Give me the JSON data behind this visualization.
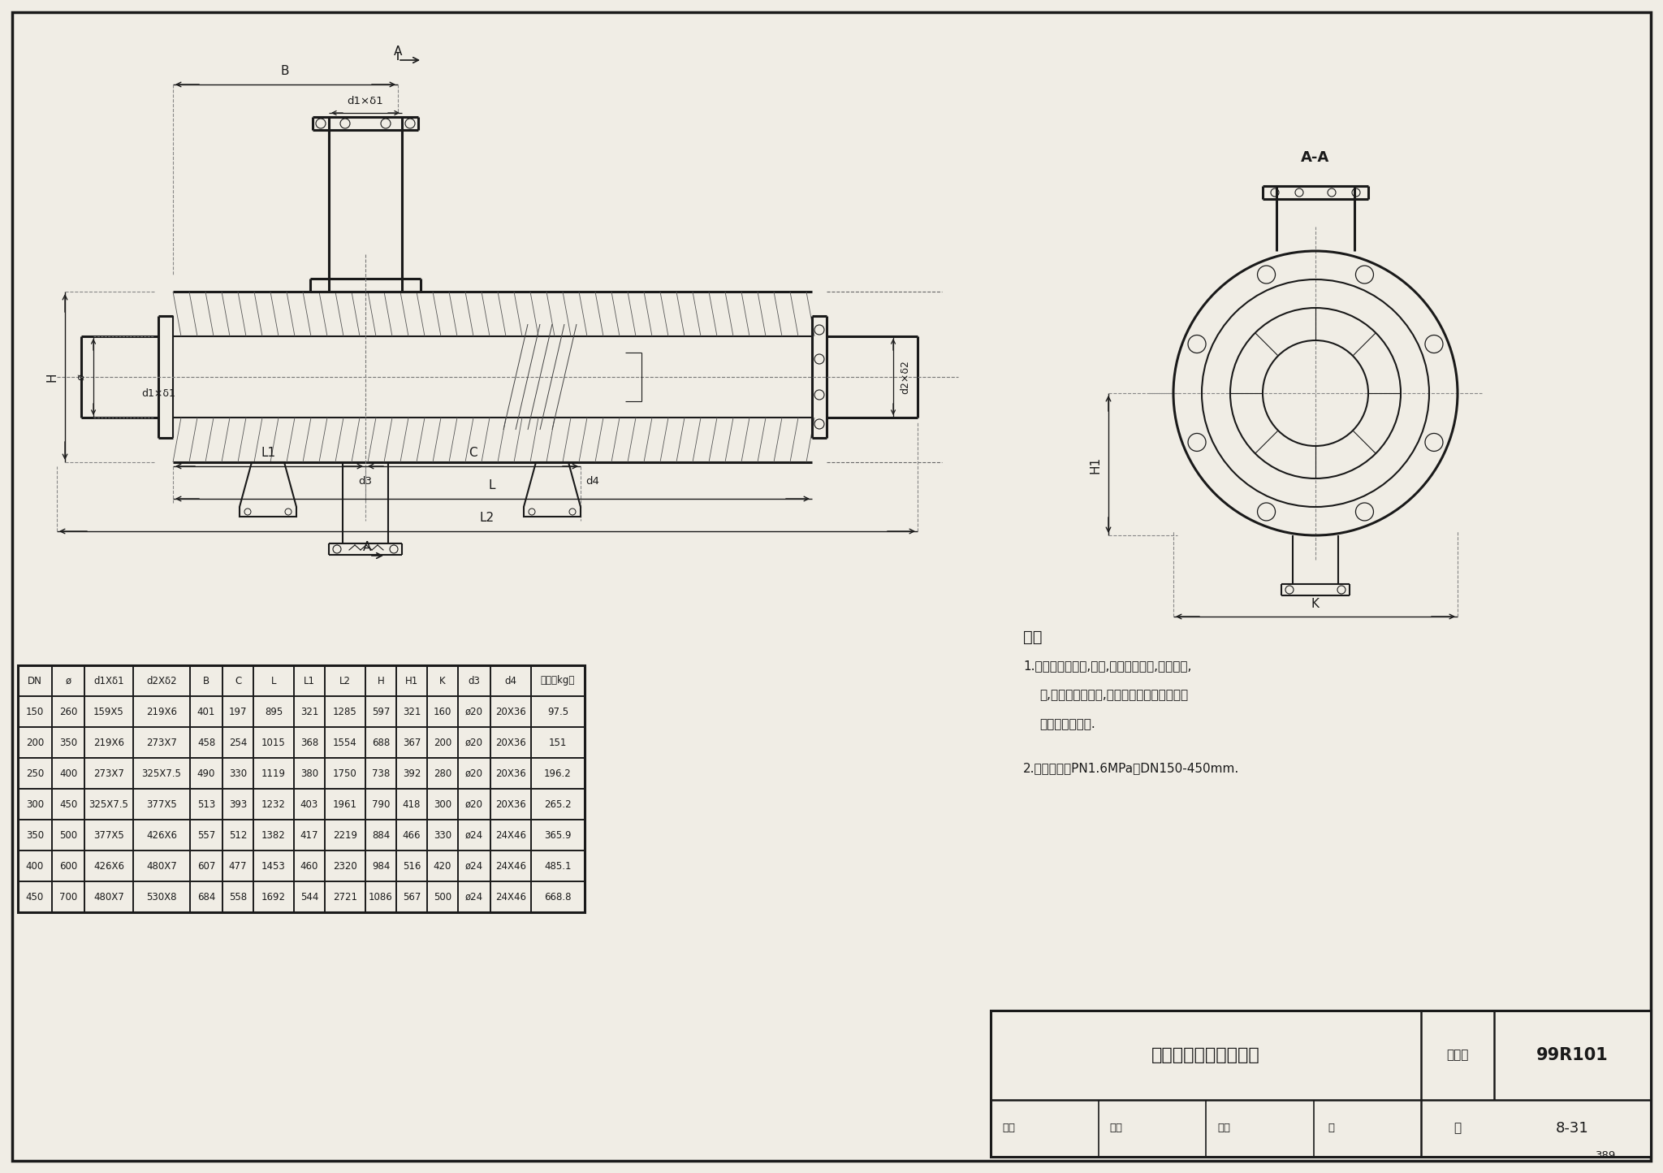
{
  "bg_color": "#f0ede5",
  "drawing_bg": "#f8f6f0",
  "line_color": "#1a1a1a",
  "dim_color": "#222222",
  "drawing_title": "卧式角通除污器（三）",
  "figure_number": "99R101",
  "page_label": "图集号",
  "page": "8-31",
  "page_num": "389",
  "note_title": "注：",
  "note1": "1.本设备用于暖通,空调,供热工程供水,回水系统,",
  "note2": "冷,热水管路入口处,用来排除在安装和运行时",
  "note3": "落入管内的污物.",
  "note4": "2.本图适用于PN1.6MPa，DN150-450mm.",
  "table_headers": [
    "DN",
    "ø",
    "d1Xδ1",
    "d2Xδ2",
    "B",
    "C",
    "L",
    "L1",
    "L2",
    "H",
    "H1",
    "K",
    "d3",
    "d4",
    "总重（kg）"
  ],
  "table_data": [
    [
      "150",
      "260",
      "159X5",
      "219X6",
      "401",
      "197",
      "895",
      "321",
      "1285",
      "597",
      "321",
      "160",
      "ø20",
      "20X36",
      "97.5"
    ],
    [
      "200",
      "350",
      "219X6",
      "273X7",
      "458",
      "254",
      "1015",
      "368",
      "1554",
      "688",
      "367",
      "200",
      "ø20",
      "20X36",
      "151"
    ],
    [
      "250",
      "400",
      "273X7",
      "325X7.5",
      "490",
      "330",
      "1119",
      "380",
      "1750",
      "738",
      "392",
      "280",
      "ø20",
      "20X36",
      "196.2"
    ],
    [
      "300",
      "450",
      "325X7.5",
      "377X5",
      "513",
      "393",
      "1232",
      "403",
      "1961",
      "790",
      "418",
      "300",
      "ø20",
      "20X36",
      "265.2"
    ],
    [
      "350",
      "500",
      "377X5",
      "426X6",
      "557",
      "512",
      "1382",
      "417",
      "2219",
      "884",
      "466",
      "330",
      "ø24",
      "24X46",
      "365.9"
    ],
    [
      "400",
      "600",
      "426X6",
      "480X7",
      "607",
      "477",
      "1453",
      "460",
      "2320",
      "984",
      "516",
      "420",
      "ø24",
      "24X46",
      "485.1"
    ],
    [
      "450",
      "700",
      "480X7",
      "530X8",
      "684",
      "558",
      "1692",
      "544",
      "2721",
      "1086",
      "567",
      "500",
      "ø24",
      "24X46",
      "668.8"
    ]
  ]
}
